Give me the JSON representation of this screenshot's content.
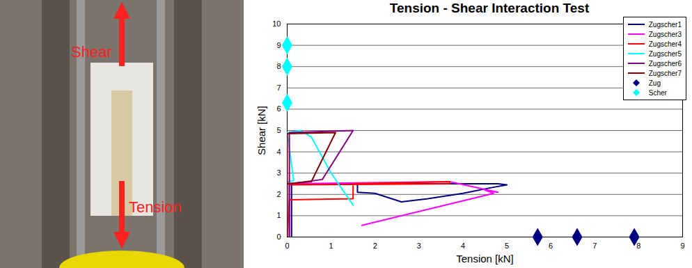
{
  "photo": {
    "labels": [
      "Shear",
      "Tension"
    ]
  },
  "chart_data": {
    "type": "line",
    "title": "Tension - Shear Interaction Test",
    "x_label": "Tension [kN]",
    "y_label": "Shear [kN]",
    "xlim": [
      0,
      9
    ],
    "xticks": [
      0,
      1,
      2,
      3,
      4,
      5,
      6,
      7,
      8,
      9
    ],
    "ylim": [
      0,
      10
    ],
    "yticks": [
      0,
      1,
      2,
      3,
      4,
      5,
      6,
      7,
      8,
      9,
      10
    ],
    "grid": true,
    "legend": "top-right",
    "series": [
      {
        "name": "Zugscher1",
        "color": "#000080",
        "type": "line",
        "marker": "none",
        "x": [
          0.1,
          0.1,
          1.6,
          1.6,
          2.0,
          2.6,
          3.2,
          4.0,
          4.6,
          5.0,
          4.8,
          3.0,
          1.6
        ],
        "values": [
          0,
          2.5,
          2.5,
          2.1,
          2.05,
          1.65,
          1.8,
          2.05,
          2.3,
          2.45,
          2.5,
          2.5,
          2.5
        ]
      },
      {
        "name": "Zugscher3",
        "color": "#ff00ff",
        "type": "line",
        "marker": "none",
        "x": [
          0.05,
          0.05,
          3.7,
          4.8,
          4.5,
          4.7,
          1.7
        ],
        "values": [
          0,
          2.5,
          2.6,
          2.1,
          2.2,
          2.05,
          0.55
        ]
      },
      {
        "name": "Zugscher4",
        "color": "#ff0000",
        "type": "line",
        "marker": "none",
        "x": [
          0.0,
          0.05,
          1.5,
          1.5,
          3.7,
          3.7,
          0.05
        ],
        "values": [
          0,
          1.75,
          1.8,
          2.5,
          2.6,
          2.5,
          2.45
        ]
      },
      {
        "name": "Zugscher5",
        "color": "#00ffff",
        "type": "line",
        "marker": "none",
        "x": [
          0.0,
          0.0,
          0.15,
          0.0,
          0.3,
          0.55,
          1.0,
          1.5
        ],
        "values": [
          0,
          2.6,
          2.65,
          4.9,
          5.0,
          4.7,
          3.0,
          1.5
        ]
      },
      {
        "name": "Zugscher6",
        "color": "#800080",
        "type": "line",
        "marker": "none",
        "x": [
          0.05,
          0.05,
          0.05,
          1.5,
          0.8,
          0.05
        ],
        "values": [
          0,
          2.5,
          4.9,
          5.0,
          2.7,
          2.5
        ]
      },
      {
        "name": "Zugscher7",
        "color": "#800000",
        "type": "line",
        "marker": "none",
        "x": [
          0.0,
          0.0,
          1.1,
          0.55,
          0.0
        ],
        "values": [
          0,
          4.85,
          4.9,
          2.6,
          2.5
        ]
      },
      {
        "name": "Zug",
        "color": "#000080",
        "type": "scatter",
        "marker": "diamond",
        "x": [
          5.7,
          6.6,
          7.9
        ],
        "values": [
          0,
          0,
          0
        ]
      },
      {
        "name": "Scher",
        "color": "#00ffff",
        "type": "scatter",
        "marker": "diamond",
        "x": [
          0,
          0,
          0
        ],
        "values": [
          9,
          8,
          6.3
        ]
      }
    ]
  }
}
